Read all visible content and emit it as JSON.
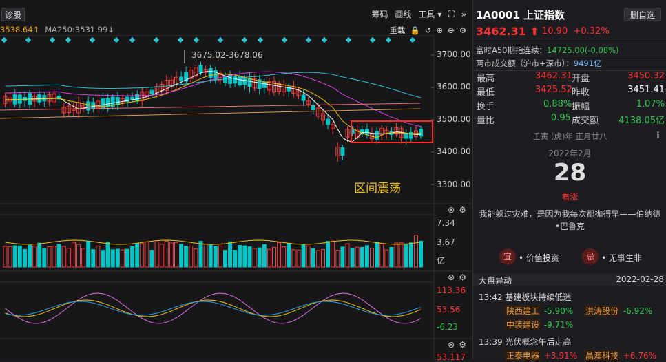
{
  "left": {
    "diag_button": "诊股",
    "tools": [
      "筹码",
      "画线",
      "工具 ▾",
      "⛶",
      "»"
    ],
    "ma_text": "3538.64↑",
    "ma250_text": "MA250:3531.99↓",
    "ma_tools": [
      "重载",
      "🔒",
      "↺",
      "⊕",
      "⊖",
      "⚙"
    ],
    "high_label": "3675.02-3678.06",
    "annotation": "区间震荡",
    "price_axis": [
      "3700.00",
      "3600.00",
      "3500.00",
      "3400.00",
      "3300.00"
    ],
    "vol_axis": [
      "7.34",
      "3.67",
      "亿"
    ],
    "ind_axis": [
      "113.36",
      "53.56",
      "-6.23"
    ],
    "bottom_axis": "53.117",
    "colors": {
      "up": "#ff3b3b",
      "down": "#00c5c7",
      "annotation": "#f0c000",
      "box": "#ff2a2a"
    }
  },
  "right": {
    "code": "1A0001",
    "name": "上证指数",
    "delete_btn": "删自选",
    "price": "3462.31",
    "arrow": "⬆",
    "change": "10.90",
    "change_pct": "+0.32%",
    "a50": "富时A50期指连续：",
    "a50_val": "14725.00(-0.08%)",
    "turnover": "两市成交额（沪市+深市）：",
    "turnover_val": "9491亿",
    "stats": {
      "high_l": "最高",
      "high": "3462.31",
      "open_l": "开盘",
      "open": "3450.32",
      "low_l": "最低",
      "low": "3425.52",
      "prev_l": "昨收",
      "prev": "3451.41",
      "hs_l": "换手",
      "hs": "0.88%",
      "amp_l": "振幅",
      "amp": "1.07%",
      "vr_l": "量比",
      "vr": "0.95",
      "amt_l": "成交额",
      "amt": "4138.05亿"
    },
    "lunar": "壬寅 (虎)年 正月廿八",
    "ym": "2022年2月",
    "day": "28",
    "forecast": "看涨",
    "quote": "我能躲过灾难，是因为我每次都抛得早——伯纳德•巴鲁克",
    "do_badge": "宜",
    "do_text": "• 价值投资",
    "dont_badge": "忌",
    "dont_text": "• 无事生非",
    "news_title": "大盘异动",
    "news_date": "2022-02-28",
    "news": [
      {
        "time": "13:42",
        "title": "基建板块持续低迷",
        "items": [
          [
            "陕西建工",
            "-5.90%"
          ],
          [
            "洪涛股份",
            "-6.92%"
          ],
          [
            "中装建设",
            "-9.71%"
          ]
        ]
      },
      {
        "time": "13:39",
        "title": "光伏概念午后走高",
        "items": [
          [
            "正泰电器",
            "+3.91%"
          ],
          [
            "晶澳科技",
            "+6.76%"
          ]
        ]
      }
    ]
  }
}
